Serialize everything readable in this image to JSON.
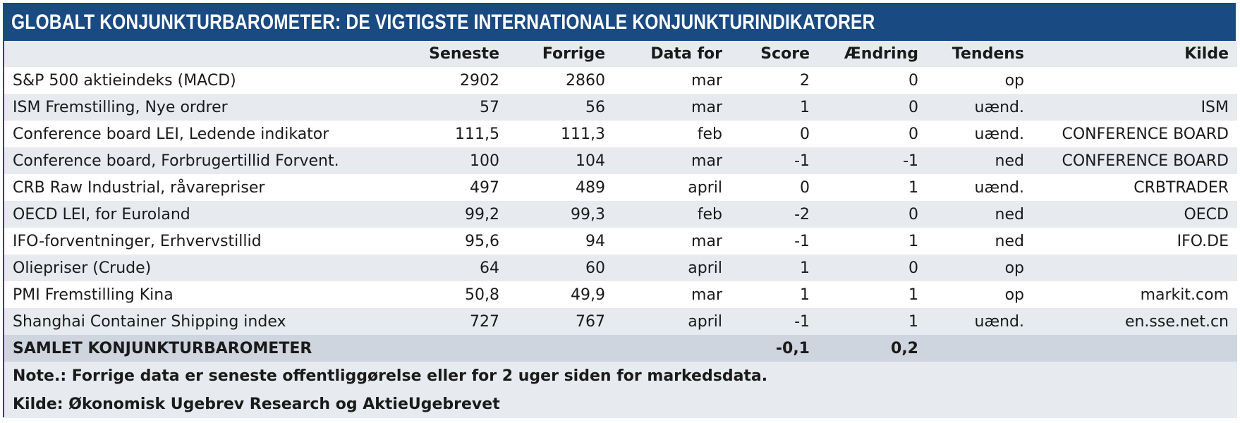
{
  "title": "GLOBALT KONJUNKTURBAROMETER: DE VIGTIGSTE INTERNATIONALE KONJUNKTURINDIKATORER",
  "columns": [
    "",
    "Seneste",
    "Forrige",
    "Data for",
    "Score",
    "Ændring",
    "Tendens",
    "Kilde"
  ],
  "rows": [
    [
      "S&P 500 aktieindeks (MACD)",
      "2902",
      "2860",
      "mar",
      "2",
      "0",
      "op",
      ""
    ],
    [
      "ISM Fremstilling, Nye ordrer",
      "57",
      "56",
      "mar",
      "1",
      "0",
      "uænd.",
      "ISM"
    ],
    [
      "Conference board LEI, Ledende indikator",
      "111,5",
      "111,3",
      "feb",
      "0",
      "0",
      "uænd.",
      "CONFERENCE BOARD"
    ],
    [
      "Conference board, Forbrugertillid Forvent.",
      "100",
      "104",
      "mar",
      "-1",
      "-1",
      "ned",
      "CONFERENCE BOARD"
    ],
    [
      "CRB Raw Industrial, råvarepriser",
      "497",
      "489",
      "april",
      "0",
      "1",
      "uænd.",
      "CRBTRADER"
    ],
    [
      "OECD LEI, for Euroland",
      "99,2",
      "99,3",
      "feb",
      "-2",
      "0",
      "ned",
      "OECD"
    ],
    [
      "IFO-forventninger, Erhvervstillid",
      "95,6",
      "94",
      "mar",
      "-1",
      "1",
      "ned",
      "IFO.DE"
    ],
    [
      "Oliepriser (Crude)",
      "64",
      "60",
      "april",
      "1",
      "0",
      "op",
      ""
    ],
    [
      "PMI Fremstilling Kina",
      "50,8",
      "49,9",
      "mar",
      "1",
      "1",
      "op",
      "markit.com"
    ],
    [
      "Shanghai  Container Shipping index",
      "727",
      "767",
      "april",
      "-1",
      "1",
      "uænd.",
      "en.sse.net.cn"
    ]
  ],
  "total": {
    "label": "SAMLET KONJUNKTURBAROMETER",
    "score": "-0,1",
    "aendring": "0,2"
  },
  "note": "Note.: Forrige data er seneste offentliggørelse eller for 2 uger siden for markedsdata.",
  "source": "Kilde: Økonomisk Ugebrev Research og AktieUgebrevet"
}
